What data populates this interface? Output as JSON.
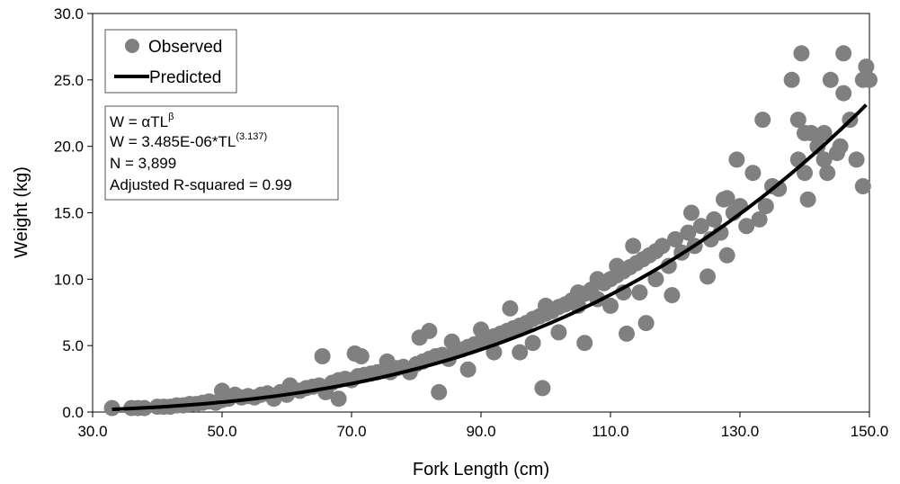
{
  "chart_data": {
    "type": "scatter",
    "xlabel": "Fork Length (cm)",
    "ylabel": "Weight (kg)",
    "xlim": [
      30,
      150
    ],
    "ylim": [
      0,
      30
    ],
    "x_ticks": [
      "30.0",
      "50.0",
      "70.0",
      "90.0",
      "110.0",
      "130.0",
      "150.0"
    ],
    "y_ticks": [
      "0.0",
      "5.0",
      "10.0",
      "15.0",
      "20.0",
      "25.0",
      "30.0"
    ],
    "grid": false,
    "legend": {
      "placement": "top-left",
      "observed_label": "Observed",
      "predicted_label": "Predicted"
    },
    "colors": {
      "observed": "#808080",
      "predicted": "#000000"
    },
    "equation": {
      "line1_base": "W = αTL",
      "line1_sup": "β",
      "line2_base": "W = 3.485E-06*TL",
      "line2_sup": "(3.137)",
      "line3": "N = 3,899",
      "line4": "Adjusted R-squared = 0.99"
    },
    "model": {
      "alpha": 3.485e-06,
      "beta": 3.137,
      "x_range": [
        33,
        149.5
      ]
    },
    "series": [
      {
        "name": "Observed",
        "points": [
          [
            33,
            0.3
          ],
          [
            36,
            0.3
          ],
          [
            37,
            0.3
          ],
          [
            38,
            0.3
          ],
          [
            40,
            0.4
          ],
          [
            41,
            0.4
          ],
          [
            42,
            0.4
          ],
          [
            43,
            0.5
          ],
          [
            44,
            0.5
          ],
          [
            45,
            0.6
          ],
          [
            46,
            0.6
          ],
          [
            47,
            0.7
          ],
          [
            48,
            0.8
          ],
          [
            49,
            0.7
          ],
          [
            50,
            1.6
          ],
          [
            50,
            0.9
          ],
          [
            51,
            1.0
          ],
          [
            52,
            1.3
          ],
          [
            53,
            1.1
          ],
          [
            54,
            1.2
          ],
          [
            55,
            1.1
          ],
          [
            56,
            1.3
          ],
          [
            57,
            1.4
          ],
          [
            58,
            1.0
          ],
          [
            59,
            1.5
          ],
          [
            60,
            1.3
          ],
          [
            60.5,
            2.0
          ],
          [
            61,
            1.7
          ],
          [
            62,
            1.6
          ],
          [
            63,
            1.8
          ],
          [
            64,
            1.9
          ],
          [
            65,
            2.0
          ],
          [
            65.5,
            4.2
          ],
          [
            66,
            1.5
          ],
          [
            67,
            2.2
          ],
          [
            68,
            1.0
          ],
          [
            68,
            2.4
          ],
          [
            69,
            2.5
          ],
          [
            70,
            2.4
          ],
          [
            70.5,
            4.4
          ],
          [
            71,
            2.7
          ],
          [
            71.5,
            4.2
          ],
          [
            72,
            2.8
          ],
          [
            73,
            2.9
          ],
          [
            74,
            3.0
          ],
          [
            75,
            3.1
          ],
          [
            75.5,
            3.8
          ],
          [
            76,
            3.0
          ],
          [
            77,
            3.3
          ],
          [
            78,
            3.4
          ],
          [
            79,
            3.0
          ],
          [
            80,
            3.6
          ],
          [
            80.5,
            5.6
          ],
          [
            81,
            3.8
          ],
          [
            82,
            6.1
          ],
          [
            82,
            4.0
          ],
          [
            83,
            4.2
          ],
          [
            83.5,
            1.5
          ],
          [
            84,
            4.3
          ],
          [
            85,
            4.0
          ],
          [
            85.5,
            5.3
          ],
          [
            86,
            4.6
          ],
          [
            87,
            4.7
          ],
          [
            88,
            4.9
          ],
          [
            88,
            3.2
          ],
          [
            89,
            5.1
          ],
          [
            90,
            5.3
          ],
          [
            90,
            6.2
          ],
          [
            91,
            5.5
          ],
          [
            92,
            4.5
          ],
          [
            92,
            5.7
          ],
          [
            93,
            5.9
          ],
          [
            94,
            6.1
          ],
          [
            94.5,
            7.8
          ],
          [
            95,
            6.3
          ],
          [
            96,
            6.5
          ],
          [
            96,
            4.5
          ],
          [
            97,
            6.7
          ],
          [
            98,
            5.2
          ],
          [
            98,
            7.0
          ],
          [
            99,
            7.2
          ],
          [
            99.5,
            1.8
          ],
          [
            100,
            7.4
          ],
          [
            100,
            8.0
          ],
          [
            101,
            7.6
          ],
          [
            102,
            7.9
          ],
          [
            102,
            6.0
          ],
          [
            103,
            8.1
          ],
          [
            104,
            8.4
          ],
          [
            105,
            8.0
          ],
          [
            105,
            9.0
          ],
          [
            106,
            8.9
          ],
          [
            106,
            5.2
          ],
          [
            107,
            9.2
          ],
          [
            108,
            8.5
          ],
          [
            108,
            10.0
          ],
          [
            109,
            9.7
          ],
          [
            110,
            10.0
          ],
          [
            110,
            8.0
          ],
          [
            111,
            10.3
          ],
          [
            111,
            11.0
          ],
          [
            112,
            9.0
          ],
          [
            112,
            10.6
          ],
          [
            112.5,
            5.9
          ],
          [
            113,
            10.9
          ],
          [
            113.5,
            12.5
          ],
          [
            114,
            11.2
          ],
          [
            114.5,
            9.0
          ],
          [
            115,
            11.5
          ],
          [
            115.5,
            6.7
          ],
          [
            116,
            11.8
          ],
          [
            117,
            12.1
          ],
          [
            117,
            10.0
          ],
          [
            118,
            12.5
          ],
          [
            119,
            11.0
          ],
          [
            119.5,
            8.8
          ],
          [
            120,
            13.0
          ],
          [
            121,
            12.0
          ],
          [
            122,
            13.5
          ],
          [
            122.5,
            15.0
          ],
          [
            123,
            12.5
          ],
          [
            124,
            14.0
          ],
          [
            125,
            10.2
          ],
          [
            125.5,
            13.0
          ],
          [
            126,
            14.5
          ],
          [
            127,
            13.5
          ],
          [
            127.5,
            16.0
          ],
          [
            128,
            11.8
          ],
          [
            128,
            16.1
          ],
          [
            129,
            15.0
          ],
          [
            129.5,
            19.0
          ],
          [
            130,
            15.5
          ],
          [
            131,
            14.0
          ],
          [
            132,
            18.0
          ],
          [
            133,
            14.5
          ],
          [
            133.5,
            22.0
          ],
          [
            134,
            15.5
          ],
          [
            135,
            17.0
          ],
          [
            136,
            16.8
          ],
          [
            138,
            25.0
          ],
          [
            139,
            22.0
          ],
          [
            139,
            19.0
          ],
          [
            139.5,
            27.0
          ],
          [
            140,
            18.0
          ],
          [
            140,
            21.0
          ],
          [
            140.5,
            16.0
          ],
          [
            141,
            21.0
          ],
          [
            142,
            20.0
          ],
          [
            143,
            21.0
          ],
          [
            143,
            19.0
          ],
          [
            143.5,
            18.0
          ],
          [
            144,
            25.0
          ],
          [
            145,
            19.5
          ],
          [
            145.5,
            20.0
          ],
          [
            146,
            27.0
          ],
          [
            146,
            24.0
          ],
          [
            147,
            22.0
          ],
          [
            148,
            19.0
          ],
          [
            149,
            25.0
          ],
          [
            149,
            17.0
          ],
          [
            149.5,
            26.0
          ],
          [
            150,
            25.0
          ]
        ]
      },
      {
        "name": "Predicted",
        "curve": "power"
      }
    ]
  }
}
